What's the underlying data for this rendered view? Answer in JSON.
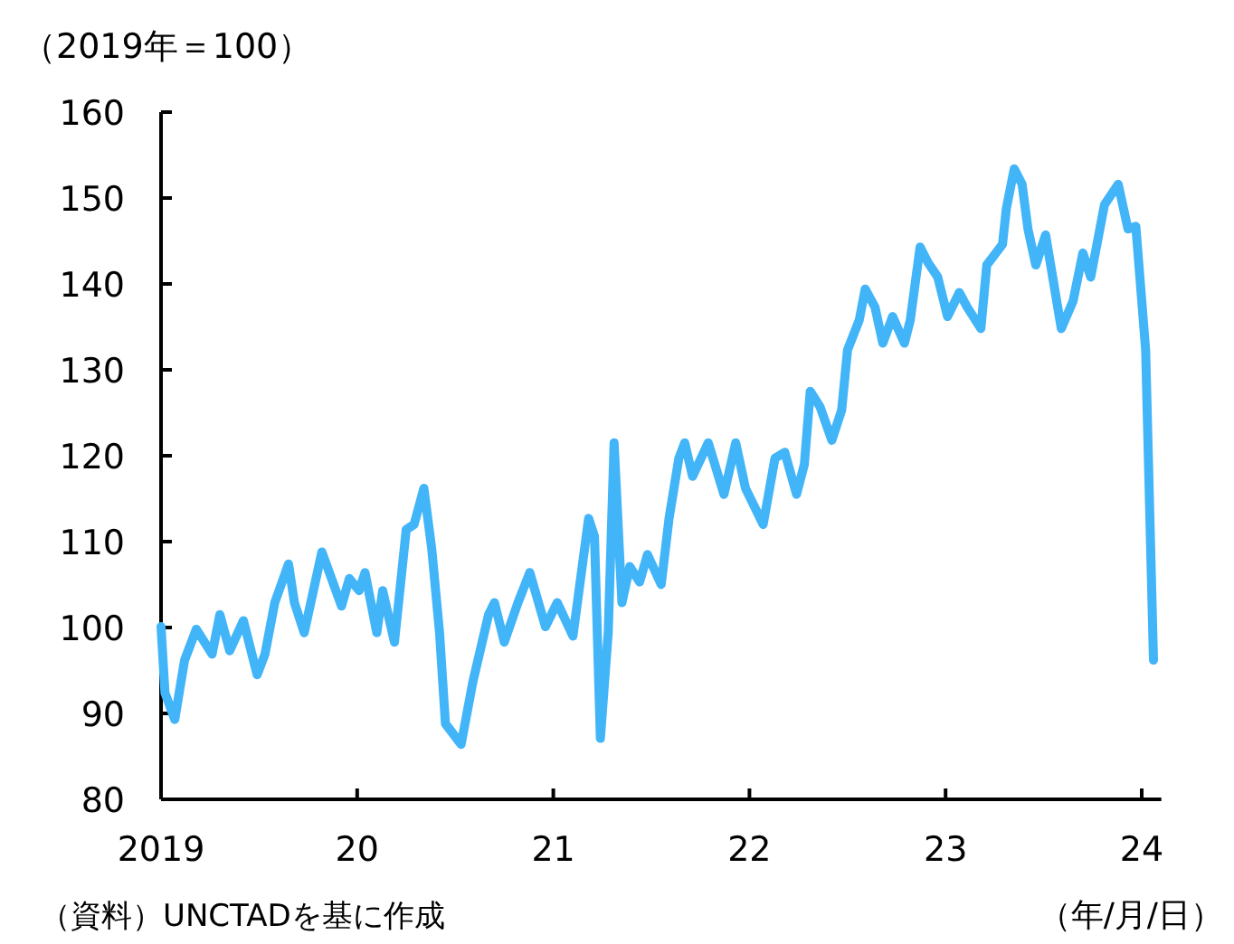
{
  "chart_data": {
    "type": "line",
    "ylabel": "（2019年＝100）",
    "xlabel": "（年/月/日）",
    "annotations": [
      "（資料）UNCTADを基に作成"
    ],
    "xlim": [
      2019,
      2024.1
    ],
    "xticks": [
      {
        "value": 2019,
        "label": "2019"
      },
      {
        "value": 2020,
        "label": "20"
      },
      {
        "value": 2021,
        "label": "21"
      },
      {
        "value": 2022,
        "label": "22"
      },
      {
        "value": 2023,
        "label": "23"
      },
      {
        "value": 2024,
        "label": "24"
      }
    ],
    "ylim": [
      80,
      160
    ],
    "yticks": [
      80,
      90,
      100,
      110,
      120,
      130,
      140,
      150,
      160
    ],
    "series": [
      {
        "color": "#42b4f8",
        "x": [
          2019.0,
          2019.02,
          2019.07,
          2019.12,
          2019.18,
          2019.26,
          2019.3,
          2019.35,
          2019.42,
          2019.49,
          2019.53,
          2019.58,
          2019.65,
          2019.68,
          2019.73,
          2019.82,
          2019.92,
          2019.96,
          2020.01,
          2020.04,
          2020.1,
          2020.13,
          2020.19,
          2020.25,
          2020.29,
          2020.34,
          2020.38,
          2020.42,
          2020.45,
          2020.53,
          2020.59,
          2020.67,
          2020.7,
          2020.75,
          2020.82,
          2020.88,
          2020.96,
          2021.02,
          2021.1,
          2021.18,
          2021.21,
          2021.24,
          2021.28,
          2021.31,
          2021.35,
          2021.39,
          2021.44,
          2021.48,
          2021.55,
          2021.59,
          2021.64,
          2021.67,
          2021.71,
          2021.79,
          2021.87,
          2021.93,
          2021.98,
          2022.07,
          2022.13,
          2022.18,
          2022.24,
          2022.28,
          2022.31,
          2022.36,
          2022.42,
          2022.47,
          2022.5,
          2022.56,
          2022.59,
          2022.64,
          2022.68,
          2022.73,
          2022.79,
          2022.82,
          2022.87,
          2022.91,
          2022.96,
          2023.01,
          2023.07,
          2023.11,
          2023.18,
          2023.21,
          2023.29,
          2023.31,
          2023.35,
          2023.39,
          2023.42,
          2023.46,
          2023.51,
          2023.59,
          2023.65,
          2023.7,
          2023.74,
          2023.81,
          2023.88,
          2023.93,
          2023.97,
          2024.02,
          2024.06
        ],
        "values": [
          100.1,
          92.4,
          89.3,
          96.2,
          99.8,
          96.9,
          101.5,
          97.3,
          100.8,
          94.5,
          96.9,
          102.9,
          107.4,
          102.9,
          99.4,
          108.8,
          102.5,
          105.7,
          104.3,
          106.4,
          99.4,
          104.3,
          98.3,
          111.4,
          112.0,
          116.2,
          109.2,
          99.4,
          88.8,
          86.4,
          93.7,
          101.5,
          102.9,
          98.3,
          102.9,
          106.4,
          100.1,
          102.9,
          99.0,
          112.7,
          110.6,
          87.1,
          99.4,
          121.5,
          102.9,
          107.1,
          105.3,
          108.5,
          105.0,
          112.7,
          119.7,
          121.5,
          117.6,
          121.5,
          115.5,
          121.5,
          116.2,
          112.0,
          119.7,
          120.4,
          115.5,
          119.0,
          127.5,
          125.7,
          121.8,
          125.3,
          132.3,
          135.8,
          139.4,
          137.3,
          133.1,
          136.2,
          133.1,
          135.8,
          144.3,
          142.5,
          140.8,
          136.2,
          139.0,
          137.3,
          134.8,
          142.2,
          144.6,
          148.8,
          153.4,
          151.6,
          146.4,
          142.2,
          145.7,
          134.8,
          138.0,
          143.6,
          140.8,
          149.2,
          151.6,
          146.4,
          146.7,
          132.3,
          96.2
        ]
      }
    ]
  }
}
